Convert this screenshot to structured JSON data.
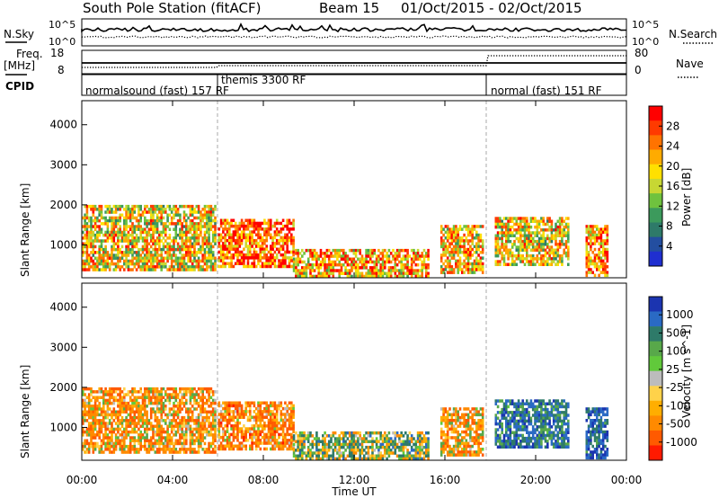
{
  "header": {
    "station": "South Pole Station (fitACF)",
    "beam": "Beam 15",
    "date_range": "01/Oct/2015 - 02/Oct/2015"
  },
  "summary_panel": {
    "nsky_label": "N.Sky",
    "nsky_ticks": [
      "10^5",
      "10^0"
    ],
    "nsearch_label": "N.Search",
    "nsearch_ticks": [
      "10^5",
      "10^0"
    ],
    "freq_label": "Freq.",
    "freq_unit": "[MHz]",
    "freq_ticks": [
      "18",
      "8"
    ],
    "nave_label": "Nave",
    "nave_ticks": [
      "80",
      "0"
    ],
    "cpid_label": "CPID",
    "cpid_segments": [
      {
        "name": "normalsound (fast) 157 RF",
        "start_hour": 0.0
      },
      {
        "name": "themis 3300 RF",
        "start_hour": 6.0
      },
      {
        "name": "normal (fast) 151 RF",
        "start_hour": 18.0
      }
    ]
  },
  "chart_data": [
    {
      "type": "heatmap",
      "title": "",
      "xlabel": "",
      "ylabel": "Slant Range [km]",
      "xlim": [
        0,
        24
      ],
      "ylim": [
        180,
        4600
      ],
      "yticks": [
        "4000",
        "3000",
        "2000",
        "1000"
      ],
      "colorbar": {
        "label": "Power [dB]",
        "ticks": [
          "28",
          "24",
          "20",
          "16",
          "12",
          "8",
          "4"
        ],
        "colors": [
          "#ff0000",
          "#ff3a00",
          "#ff7300",
          "#ffab00",
          "#ffe000",
          "#c7d733",
          "#6fc23e",
          "#3c9a5c",
          "#2e7a69",
          "#234ea0",
          "#1f2fd0"
        ]
      },
      "echo_regions": [
        {
          "t0": 0.0,
          "t1": 5.9,
          "r0": 350,
          "r1": 2000,
          "typical_value": 20
        },
        {
          "t0": 6.0,
          "t1": 9.3,
          "r0": 450,
          "r1": 1650,
          "typical_value": 27
        },
        {
          "t0": 9.3,
          "t1": 15.3,
          "r0": 250,
          "r1": 900,
          "typical_value": 23
        },
        {
          "t0": 15.8,
          "t1": 17.7,
          "r0": 300,
          "r1": 1500,
          "typical_value": 22
        },
        {
          "t0": 18.2,
          "t1": 21.4,
          "r0": 550,
          "r1": 1700,
          "typical_value": 20
        },
        {
          "t0": 22.2,
          "t1": 23.2,
          "r0": 250,
          "r1": 1500,
          "typical_value": 24
        }
      ]
    },
    {
      "type": "heatmap",
      "title": "",
      "xlabel": "Time UT",
      "ylabel": "Slant Range [km]",
      "xlim": [
        0,
        24
      ],
      "ylim": [
        180,
        4600
      ],
      "yticks": [
        "4000",
        "3000",
        "2000",
        "1000"
      ],
      "xticks": [
        "00:00",
        "04:00",
        "08:00",
        "12:00",
        "16:00",
        "20:00",
        "00:00"
      ],
      "colorbar": {
        "label": "Velocity [m s^-1]",
        "ticks": [
          "1000",
          "500",
          "100",
          "25",
          "-25",
          "-100",
          "-500",
          "-1000"
        ],
        "colors": [
          "#1b34b0",
          "#2a6ac4",
          "#2e7a69",
          "#58a84a",
          "#61c93b",
          "#bcbcbc",
          "#ffd24a",
          "#ffae00",
          "#ff8a00",
          "#ff5a00",
          "#ff1a00"
        ]
      },
      "echo_regions": [
        {
          "t0": 0.0,
          "t1": 5.9,
          "r0": 350,
          "r1": 2000,
          "typical_value": -300
        },
        {
          "t0": 6.0,
          "t1": 9.3,
          "r0": 450,
          "r1": 1650,
          "typical_value": -400
        },
        {
          "t0": 9.3,
          "t1": 15.3,
          "r0": 250,
          "r1": 900,
          "typical_value": 100
        },
        {
          "t0": 15.8,
          "t1": 17.7,
          "r0": 300,
          "r1": 1500,
          "typical_value": -250
        },
        {
          "t0": 18.2,
          "t1": 21.4,
          "r0": 550,
          "r1": 1700,
          "typical_value": 500
        },
        {
          "t0": 22.2,
          "t1": 23.2,
          "r0": 250,
          "r1": 1500,
          "typical_value": 600
        }
      ]
    }
  ]
}
